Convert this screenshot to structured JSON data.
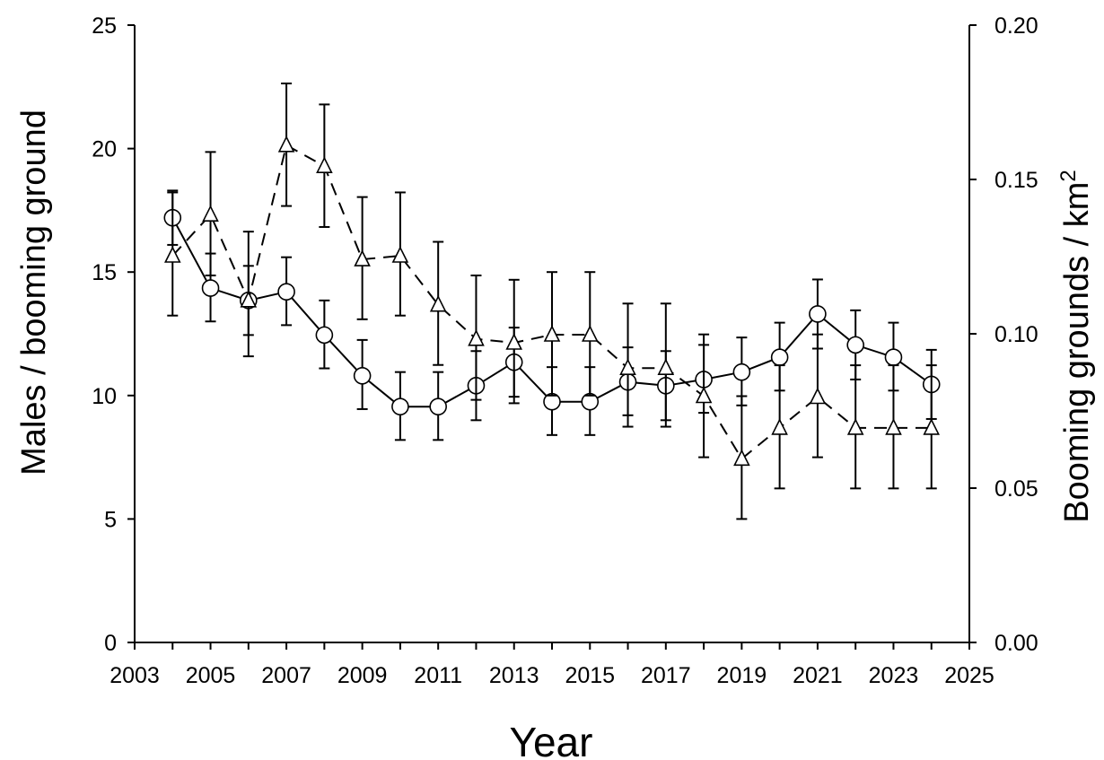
{
  "chart_data": {
    "type": "line",
    "xlabel": "Year",
    "ylabel_left": "Males / booming ground",
    "ylabel_right": {
      "text": "Booming grounds / km",
      "superscript": "2"
    },
    "xlim": [
      2003,
      2025
    ],
    "ylim_left": [
      0,
      25
    ],
    "ylim_right": [
      0,
      0.2
    ],
    "x_ticks": [
      "2003",
      "2005",
      "2007",
      "2009",
      "2011",
      "2013",
      "2015",
      "2017",
      "2019",
      "2021",
      "2023",
      "2025"
    ],
    "y_left_ticks": [
      "0",
      "5",
      "10",
      "15",
      "20",
      "25"
    ],
    "y_right_ticks": [
      "0.00",
      "0.05",
      "0.10",
      "0.15",
      "0.20"
    ],
    "grid": false,
    "x": [
      2004,
      2005,
      2006,
      2007,
      2008,
      2009,
      2010,
      2011,
      2012,
      2013,
      2014,
      2015,
      2016,
      2017,
      2018,
      2019,
      2020,
      2021,
      2022,
      2023,
      2024
    ],
    "series": [
      {
        "axis": "left",
        "marker": "circle",
        "line": "solid",
        "values": [
          17.2,
          14.35,
          13.85,
          14.2,
          12.45,
          10.8,
          9.55,
          9.55,
          10.4,
          11.35,
          9.75,
          9.75,
          10.55,
          10.4,
          10.65,
          10.95,
          11.55,
          13.3,
          12.05,
          11.55,
          10.45
        ],
        "err_low": [
          16.1,
          13.0,
          12.45,
          12.85,
          11.1,
          9.45,
          8.2,
          8.2,
          9.0,
          9.95,
          8.4,
          8.4,
          9.2,
          9.0,
          9.3,
          9.6,
          10.2,
          11.9,
          10.65,
          10.2,
          9.05
        ],
        "err_high": [
          18.3,
          15.75,
          15.25,
          15.6,
          13.85,
          12.25,
          10.95,
          10.95,
          11.8,
          12.75,
          11.15,
          11.15,
          11.95,
          11.8,
          12.05,
          12.35,
          12.95,
          14.7,
          13.45,
          12.95,
          11.85
        ]
      },
      {
        "axis": "right",
        "marker": "triangle",
        "line": "dashed",
        "values": [
          0.1253,
          0.1386,
          0.1108,
          0.1611,
          0.1543,
          0.1241,
          0.1253,
          0.1094,
          0.0983,
          0.0971,
          0.0997,
          0.0997,
          0.0889,
          0.0889,
          0.0798,
          0.0595,
          0.0695,
          0.0795,
          0.0695,
          0.0695,
          0.0695
        ],
        "err_low": [
          0.1059,
          0.1189,
          0.0927,
          0.1414,
          0.1346,
          0.1047,
          0.1059,
          0.0899,
          0.0786,
          0.0775,
          0.08,
          0.08,
          0.0699,
          0.0699,
          0.06,
          0.04,
          0.0499,
          0.06,
          0.0499,
          0.0499,
          0.0499
        ],
        "err_high": [
          0.1458,
          0.1589,
          0.1331,
          0.1811,
          0.1743,
          0.1443,
          0.1458,
          0.1298,
          0.1189,
          0.1175,
          0.12,
          0.12,
          0.1098,
          0.1098,
          0.0998,
          0.0798,
          0.0898,
          0.0998,
          0.0898,
          0.0898,
          0.0898
        ]
      }
    ]
  }
}
